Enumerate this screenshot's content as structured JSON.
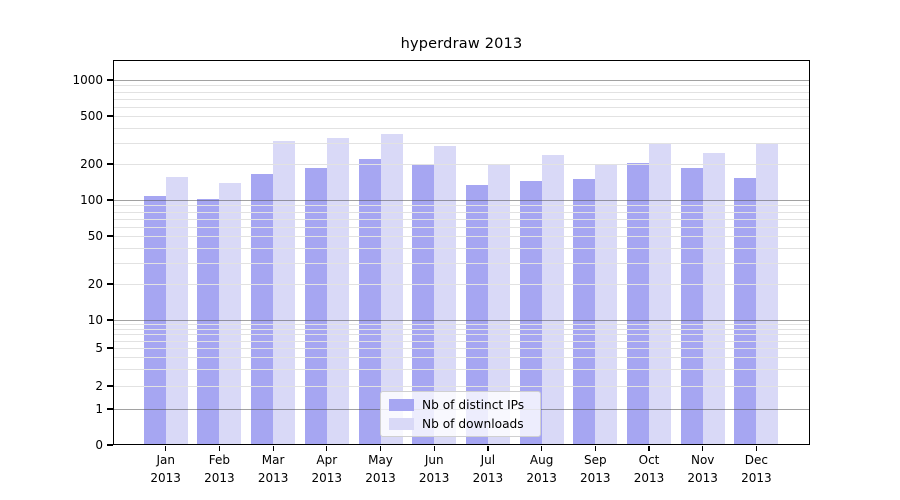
{
  "chart_data": {
    "type": "bar",
    "title": "hyperdraw 2013",
    "categories": [
      "Jan",
      "Feb",
      "Mar",
      "Apr",
      "May",
      "Jun",
      "Jul",
      "Aug",
      "Sep",
      "Oct",
      "Nov",
      "Dec"
    ],
    "year_label": "2013",
    "series": [
      {
        "name": "Nb of distinct IPs",
        "color": "#a6a6f2",
        "values": [
          109,
          101,
          165,
          186,
          220,
          198,
          134,
          145,
          150,
          205,
          184,
          152
        ]
      },
      {
        "name": "Nb of downloads",
        "color": "#d9d9f7",
        "values": [
          156,
          139,
          310,
          328,
          352,
          284,
          197,
          238,
          196,
          296,
          246,
          300
        ]
      }
    ],
    "y_ticks": [
      0,
      1,
      2,
      5,
      10,
      20,
      50,
      100,
      200,
      500,
      1000
    ],
    "y_scale": "symlog",
    "ylim": [
      0,
      1400
    ],
    "grid": true,
    "legend_position": "lower center"
  },
  "colors": {
    "background": "#ffffff",
    "text": "#000000",
    "spine": "#000000",
    "major_grid": "rgba(85,85,85,0.55)",
    "minor_grid": "#e2e2e2"
  }
}
